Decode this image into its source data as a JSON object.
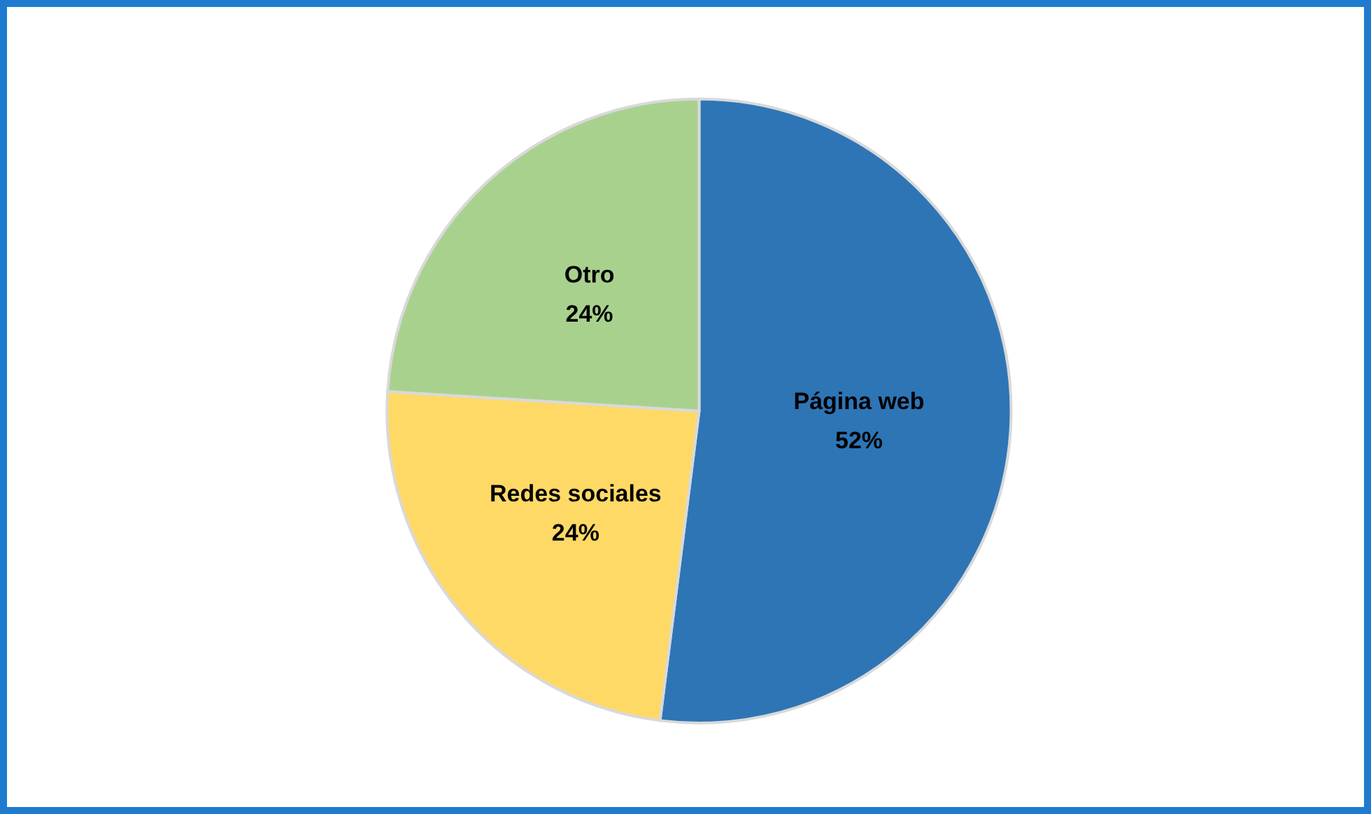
{
  "chart_data": {
    "type": "pie",
    "categories": [
      "Página web",
      "Redes sociales",
      "Otro"
    ],
    "values": [
      52,
      24,
      24
    ],
    "value_labels": [
      "52%",
      "24%",
      "24%"
    ],
    "colors": [
      "#2e75b6",
      "#ffd966",
      "#a9d18e"
    ],
    "legend": false
  }
}
